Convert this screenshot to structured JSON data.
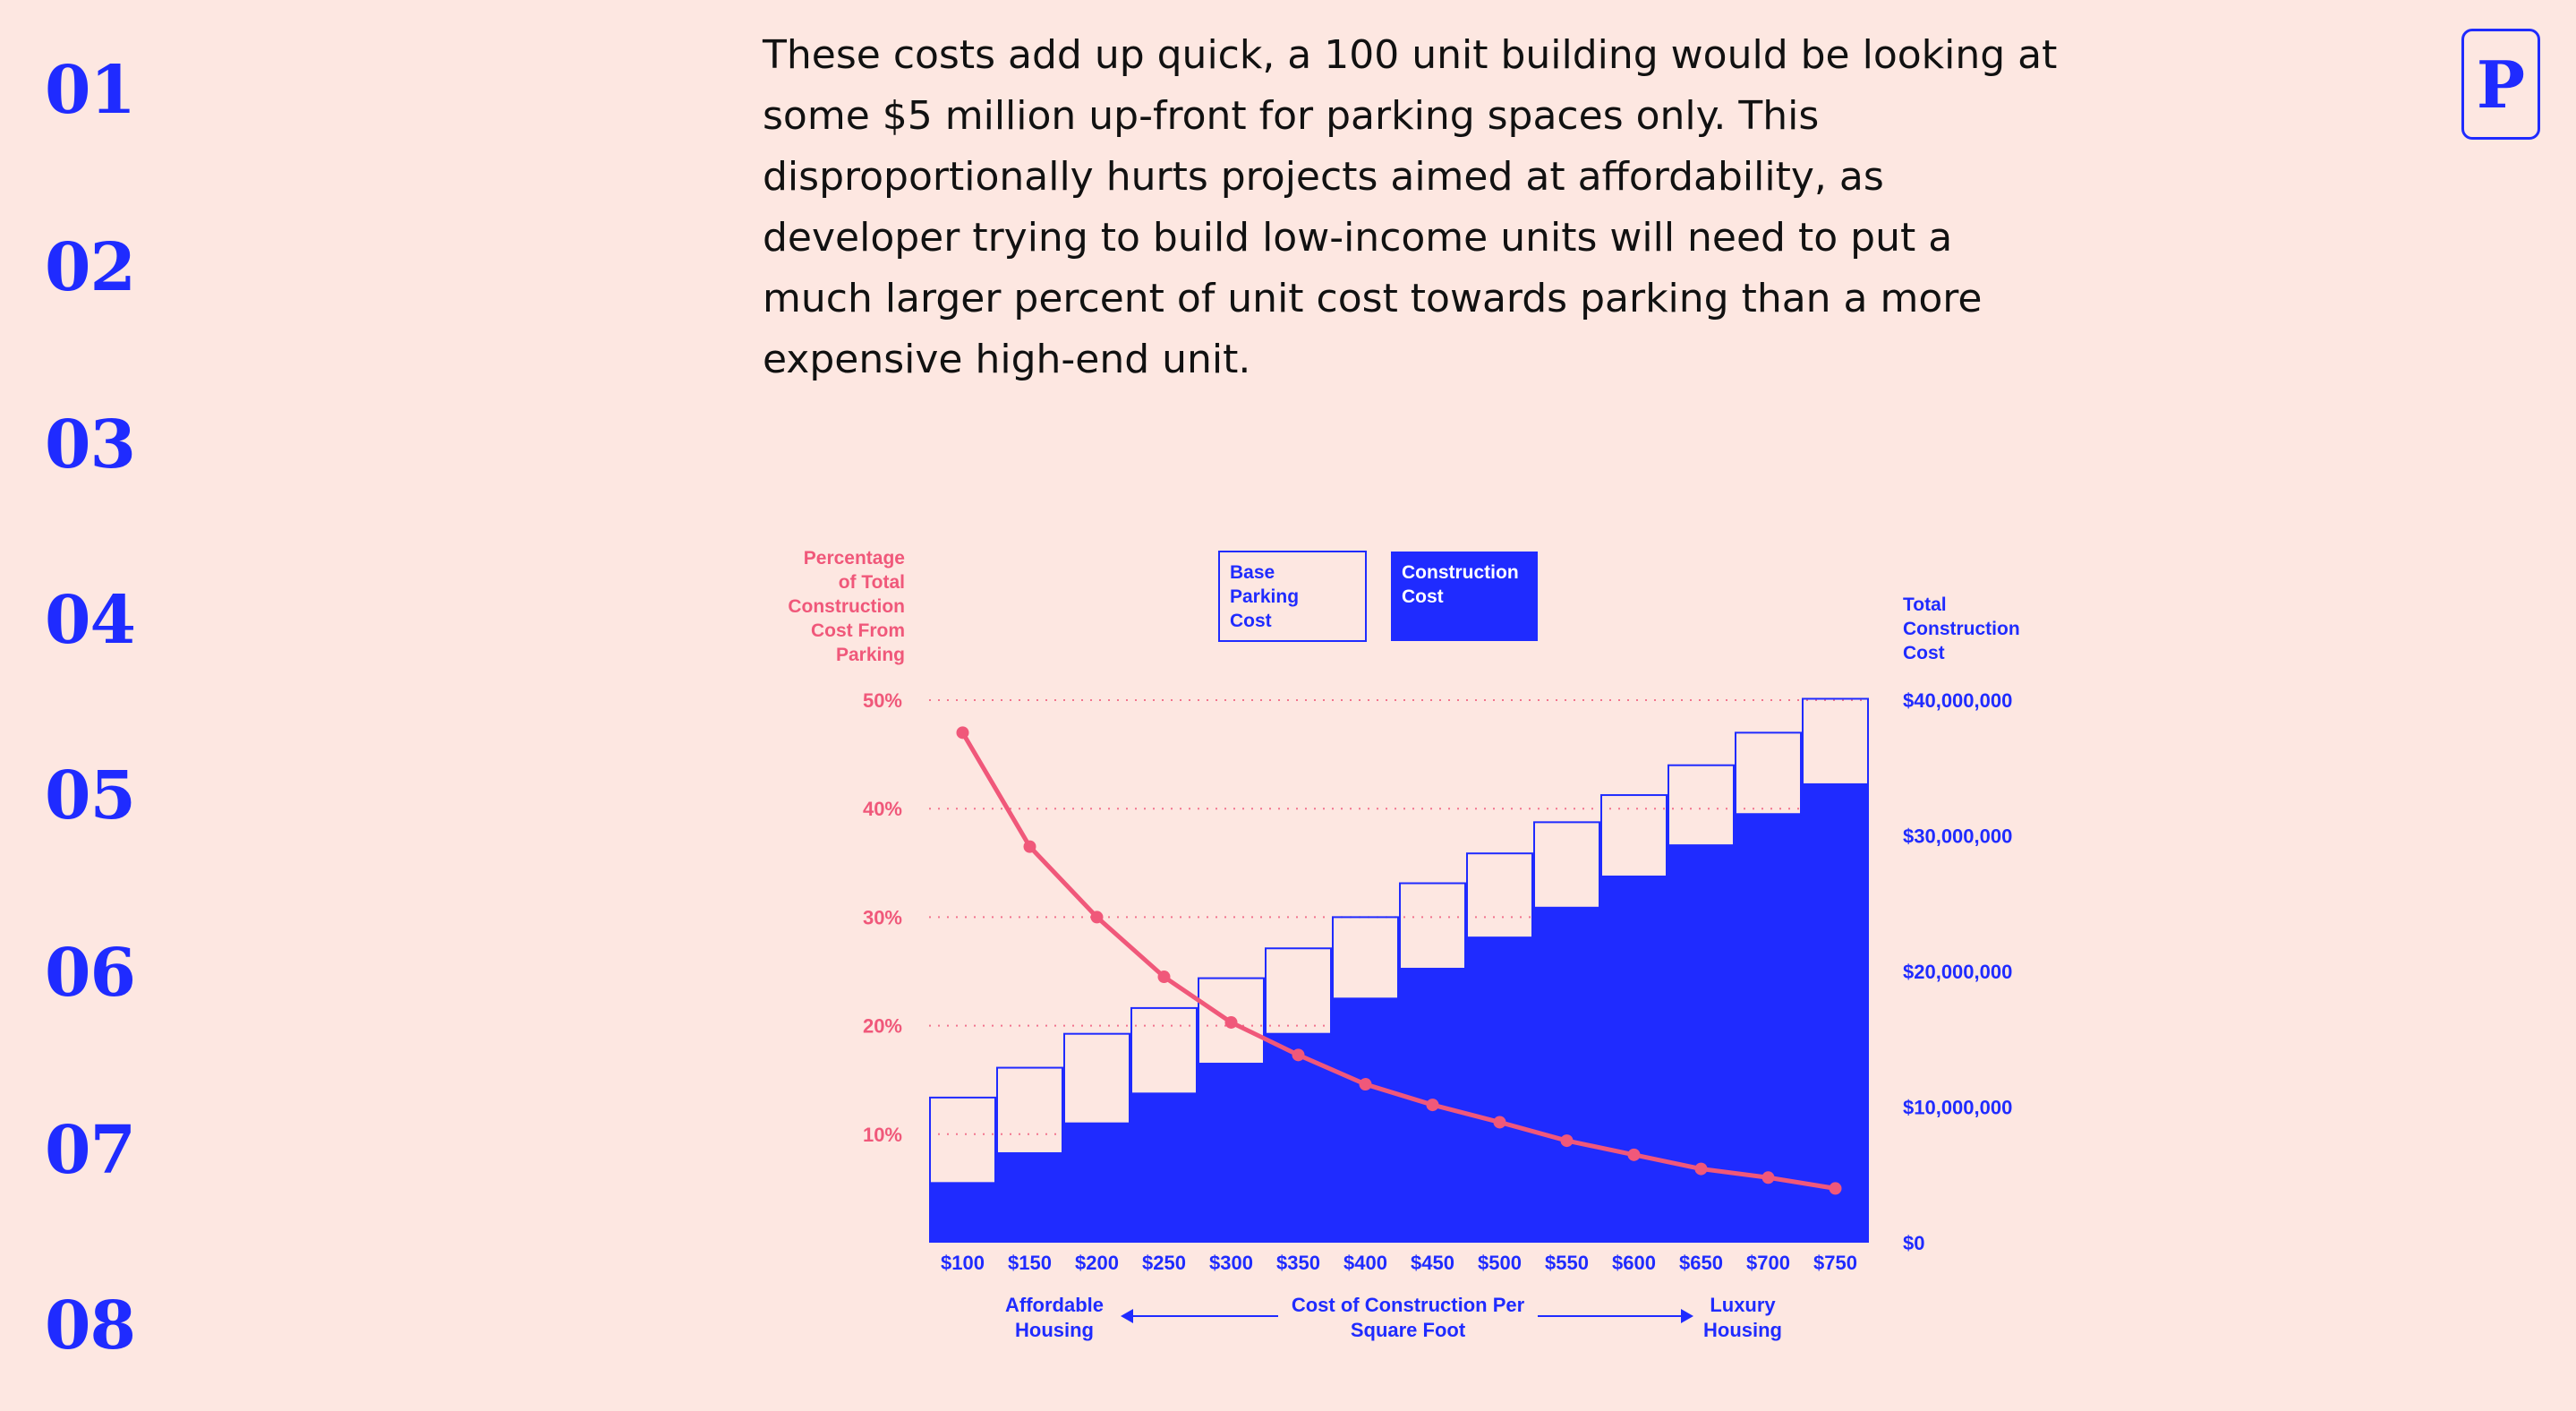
{
  "nav": {
    "items": [
      "01",
      "02",
      "03",
      "04",
      "05",
      "06",
      "07",
      "08"
    ]
  },
  "text": {
    "paragraph": "These costs add up quick, a 100 unit building would be looking at some $5 million up-front for parking spaces only. This disproportionally hurts projects aimed at affordability, as developer trying to build low-income units will need to put a much larger percent of unit cost towards parking than a more expensive high-end unit."
  },
  "logo": {
    "letter": "P"
  },
  "colors": {
    "background": "#fde7e1",
    "accent": "#1f2bff",
    "pink": "#f0587a",
    "text": "#111111"
  },
  "chart_data": {
    "type": "bar",
    "categories": [
      "$100",
      "$150",
      "$200",
      "$250",
      "$300",
      "$350",
      "$400",
      "$450",
      "$500",
      "$550",
      "$600",
      "$650",
      "$700",
      "$750"
    ],
    "legend": [
      "Base\nParking\nCost",
      "Construction\nCost"
    ],
    "left_axis": {
      "label": "Percentage\nof Total\nConstruction\nCost From\nParking",
      "ticks": [
        10,
        20,
        30,
        40,
        50
      ],
      "tick_labels": [
        "10%",
        "20%",
        "30%",
        "40%",
        "50%"
      ],
      "ylim": [
        0,
        50
      ]
    },
    "right_axis": {
      "label": "Total\nConstruction\nCost",
      "ticks": [
        0,
        10000000,
        20000000,
        30000000,
        40000000
      ],
      "tick_labels": [
        "$0",
        "$10,000,000",
        "$20,000,000",
        "$30,000,000",
        "$40,000,000"
      ],
      "ylim": [
        0,
        40000000
      ]
    },
    "series": [
      {
        "name": "Construction Cost",
        "type": "bar",
        "axis": "right",
        "values": [
          4400000,
          6600000,
          8800000,
          11000000,
          13200000,
          15400000,
          18000000,
          20200000,
          22500000,
          24700000,
          27000000,
          29300000,
          31600000,
          33800000
        ]
      },
      {
        "name": "Base Parking Cost",
        "type": "bar",
        "stacked": true,
        "axis": "right",
        "values": [
          6300000,
          6300000,
          6600000,
          6300000,
          6300000,
          6300000,
          6000000,
          6300000,
          6200000,
          6300000,
          6000000,
          5900000,
          6000000,
          6300000
        ]
      },
      {
        "name": "Percentage of Total Construction Cost From Parking",
        "type": "line",
        "axis": "left",
        "values": [
          47,
          36.5,
          30,
          24.5,
          20.3,
          17.3,
          14.6,
          12.7,
          11.1,
          9.4,
          8.1,
          6.8,
          6.0,
          5.0
        ]
      }
    ],
    "x_axis": {
      "title": "Cost of Construction Per\nSquare Foot",
      "left_annotation": "Affordable\nHousing",
      "right_annotation": "Luxury\nHousing"
    },
    "grid": "dotted-horizontal"
  }
}
